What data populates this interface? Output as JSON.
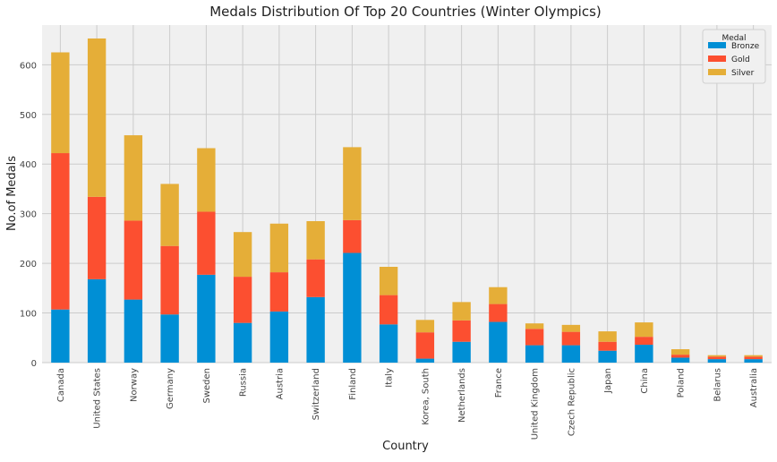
{
  "chart_data": {
    "type": "bar",
    "stacked": true,
    "title": "Medals Distribution Of Top 20 Countries (Winter Olympics)",
    "xlabel": "Country",
    "ylabel": "No.of Medals",
    "ylim": [
      0,
      680
    ],
    "yticks": [
      0,
      100,
      200,
      300,
      400,
      500,
      600
    ],
    "grid": true,
    "legend": {
      "title": "Medal",
      "placement": "top-right"
    },
    "categories": [
      "Canada",
      "United States",
      "Norway",
      "Germany",
      "Sweden",
      "Russia",
      "Austria",
      "Switzerland",
      "Finland",
      "Italy",
      "Korea, South",
      "Netherlands",
      "France",
      "United Kingdom",
      "Czech Republic",
      "Japan",
      "China",
      "Poland",
      "Belarus",
      "Australia"
    ],
    "series": [
      {
        "name": "Bronze",
        "color": "#008fd5",
        "values": [
          107,
          168,
          127,
          97,
          177,
          80,
          103,
          132,
          221,
          77,
          8,
          42,
          82,
          35,
          35,
          24,
          36,
          10,
          7,
          7
        ]
      },
      {
        "name": "Gold",
        "color": "#fc4f30",
        "values": [
          315,
          166,
          159,
          138,
          127,
          93,
          79,
          76,
          66,
          59,
          53,
          43,
          36,
          33,
          27,
          18,
          16,
          6,
          5,
          5
        ]
      },
      {
        "name": "Silver",
        "color": "#e5ae38",
        "values": [
          203,
          319,
          172,
          125,
          128,
          90,
          98,
          77,
          147,
          57,
          25,
          37,
          34,
          11,
          14,
          21,
          29,
          11,
          3,
          3
        ]
      }
    ]
  }
}
